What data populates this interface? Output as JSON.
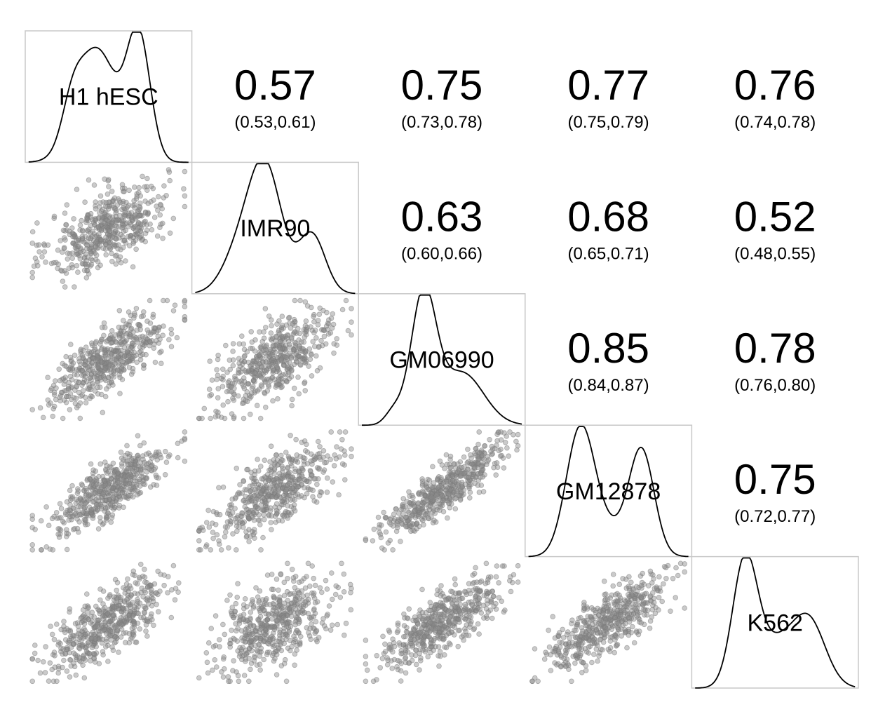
{
  "chart_data": {
    "type": "scatter",
    "variables": [
      "H1 hESC",
      "IMR90",
      "GM06990",
      "GM12878",
      "K562"
    ],
    "correlations": [
      {
        "row": 0,
        "col": 1,
        "r": "0.57",
        "ci": "(0.53,0.61)"
      },
      {
        "row": 0,
        "col": 2,
        "r": "0.75",
        "ci": "(0.73,0.78)"
      },
      {
        "row": 0,
        "col": 3,
        "r": "0.77",
        "ci": "(0.75,0.79)"
      },
      {
        "row": 0,
        "col": 4,
        "r": "0.76",
        "ci": "(0.74,0.78)"
      },
      {
        "row": 1,
        "col": 2,
        "r": "0.63",
        "ci": "(0.60,0.66)"
      },
      {
        "row": 1,
        "col": 3,
        "r": "0.68",
        "ci": "(0.65,0.71)"
      },
      {
        "row": 1,
        "col": 4,
        "r": "0.52",
        "ci": "(0.48,0.55)"
      },
      {
        "row": 2,
        "col": 3,
        "r": "0.85",
        "ci": "(0.84,0.87)"
      },
      {
        "row": 2,
        "col": 4,
        "r": "0.78",
        "ci": "(0.76,0.80)"
      },
      {
        "row": 3,
        "col": 4,
        "r": "0.75",
        "ci": "(0.72,0.77)"
      }
    ],
    "density_shapes": [
      {
        "variable": "H1 hESC",
        "peaks": [
          {
            "at": 0.43,
            "height": 0.86,
            "width": 0.12
          },
          {
            "at": 0.68,
            "height": 0.94,
            "width": 0.07
          },
          {
            "at": 0.28,
            "height": 0.25,
            "width": 0.06
          }
        ]
      },
      {
        "variable": "IMR90",
        "peaks": [
          {
            "at": 0.44,
            "height": 0.95,
            "width": 0.1
          },
          {
            "at": 0.72,
            "height": 0.45,
            "width": 0.08
          },
          {
            "at": 0.28,
            "height": 0.28,
            "width": 0.1
          }
        ]
      },
      {
        "variable": "GM06990",
        "peaks": [
          {
            "at": 0.39,
            "height": 0.98,
            "width": 0.075
          },
          {
            "at": 0.62,
            "height": 0.4,
            "width": 0.13
          },
          {
            "at": 0.21,
            "height": 0.1,
            "width": 0.05
          }
        ]
      },
      {
        "variable": "GM12878",
        "peaks": [
          {
            "at": 0.33,
            "height": 0.93,
            "width": 0.085
          },
          {
            "at": 0.7,
            "height": 0.78,
            "width": 0.075
          },
          {
            "at": 0.5,
            "height": 0.2,
            "width": 0.12
          }
        ]
      },
      {
        "variable": "K562",
        "peaks": [
          {
            "at": 0.32,
            "height": 0.97,
            "width": 0.075
          },
          {
            "at": 0.7,
            "height": 0.52,
            "width": 0.1
          },
          {
            "at": 0.5,
            "height": 0.3,
            "width": 0.1
          }
        ]
      }
    ],
    "point_color": "#8a8a8a",
    "line_color": "#000000",
    "box_color": "#c8c8c8",
    "grid": false,
    "legend": "none"
  }
}
